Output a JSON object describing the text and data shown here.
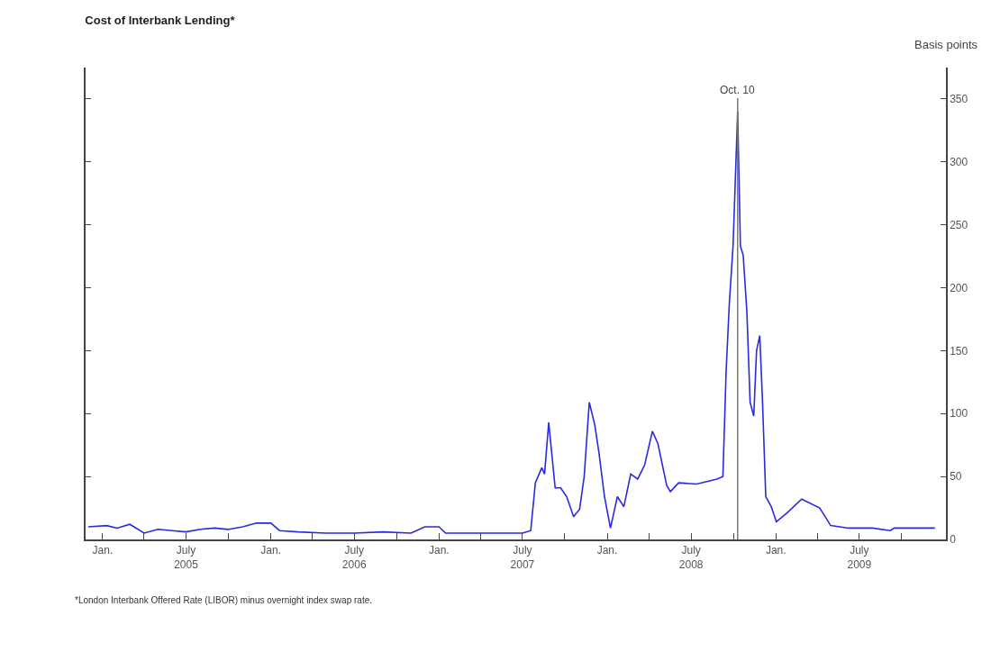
{
  "chart_data": {
    "type": "line",
    "title": "Cost of Interbank Lending*",
    "ylabel": "Basis points",
    "annotations": [
      "*London Interbank Offered Rate (LIBOR) minus overnight index swap rate."
    ],
    "x": [
      "2004-12-01",
      "2005-01-10",
      "2005-02-01",
      "2005-03-01",
      "2005-04-01",
      "2005-05-01",
      "2005-06-01",
      "2005-07-01",
      "2005-08-01",
      "2005-09-01",
      "2005-10-01",
      "2005-11-01",
      "2005-12-01",
      "2006-01-01",
      "2006-01-20",
      "2006-03-01",
      "2006-05-01",
      "2006-07-01",
      "2006-09-01",
      "2006-11-01",
      "2006-12-01",
      "2007-01-01",
      "2007-01-15",
      "2007-03-01",
      "2007-05-01",
      "2007-07-01",
      "2007-07-19",
      "2007-07-29",
      "2007-08-12",
      "2007-08-18",
      "2007-08-27",
      "2007-09-10",
      "2007-09-22",
      "2007-10-05",
      "2007-10-20",
      "2007-11-02",
      "2007-11-12",
      "2007-11-23",
      "2007-12-05",
      "2007-12-14",
      "2007-12-26",
      "2008-01-08",
      "2008-01-23",
      "2008-02-06",
      "2008-02-21",
      "2008-03-07",
      "2008-03-22",
      "2008-04-08",
      "2008-04-20",
      "2008-05-09",
      "2008-05-17",
      "2008-06-04",
      "2008-07-13",
      "2008-08-26",
      "2008-09-08",
      "2008-09-15",
      "2008-09-22",
      "2008-09-30",
      "2008-10-10",
      "2008-10-16",
      "2008-10-22",
      "2008-10-30",
      "2008-11-06",
      "2008-11-14",
      "2008-11-20",
      "2008-11-27",
      "2008-12-03",
      "2008-12-10",
      "2008-12-22",
      "2009-01-02",
      "2009-01-25",
      "2009-02-26",
      "2009-04-06",
      "2009-04-30",
      "2009-06-08",
      "2009-07-30",
      "2009-09-06",
      "2009-09-15",
      "2009-11-08",
      "2009-12-12"
    ],
    "series": [
      {
        "color": "#2a2ae0",
        "values": [
          10,
          11,
          9,
          12,
          5,
          8,
          7,
          6,
          8,
          9,
          8,
          10,
          13,
          13,
          7,
          6,
          5,
          5,
          6,
          5,
          10,
          10,
          5,
          5,
          5,
          5,
          7,
          45,
          57,
          52,
          93,
          41,
          41,
          34,
          18,
          24,
          50,
          109,
          91,
          69,
          34,
          9,
          34,
          26,
          52,
          48,
          59,
          86,
          76,
          43,
          38,
          45,
          44,
          48,
          50,
          134,
          188,
          233,
          340,
          233,
          226,
          181,
          109,
          98,
          150,
          162,
          109,
          34,
          26,
          14,
          21,
          32,
          25,
          11,
          9,
          9,
          7,
          9,
          9,
          9
        ]
      }
    ],
    "xlim": [
      "2004-11-25",
      "2010-01-05"
    ],
    "xticks": [
      {
        "value": "2005-01-01",
        "label": "Jan."
      },
      {
        "value": "2005-04-01",
        "label": null
      },
      {
        "value": "2005-07-01",
        "label": "July\n2005"
      },
      {
        "value": "2005-10-01",
        "label": null
      },
      {
        "value": "2006-01-01",
        "label": "Jan."
      },
      {
        "value": "2006-04-01",
        "label": null
      },
      {
        "value": "2006-07-01",
        "label": "July\n2006"
      },
      {
        "value": "2006-10-01",
        "label": null
      },
      {
        "value": "2007-01-01",
        "label": "Jan."
      },
      {
        "value": "2007-04-01",
        "label": null
      },
      {
        "value": "2007-07-01",
        "label": "July\n2007"
      },
      {
        "value": "2007-10-01",
        "label": null
      },
      {
        "value": "2008-01-01",
        "label": "Jan."
      },
      {
        "value": "2008-04-01",
        "label": null
      },
      {
        "value": "2008-07-01",
        "label": "July\n2008"
      },
      {
        "value": "2008-10-01",
        "label": null
      },
      {
        "value": "2009-01-01",
        "label": "Jan."
      },
      {
        "value": "2009-04-01",
        "label": null
      },
      {
        "value": "2009-07-01",
        "label": "July\n2009"
      },
      {
        "value": "2009-10-01",
        "label": null
      }
    ],
    "ylim": [
      0,
      375
    ],
    "yticks": [
      0,
      50,
      100,
      150,
      200,
      250,
      300,
      350
    ],
    "ref_lines": [
      {
        "axis": "x",
        "value": "2008-10-10",
        "label": "Oct. 10",
        "color": "#777777"
      }
    ],
    "grid": false,
    "marker": "none",
    "line_style": "solid"
  }
}
